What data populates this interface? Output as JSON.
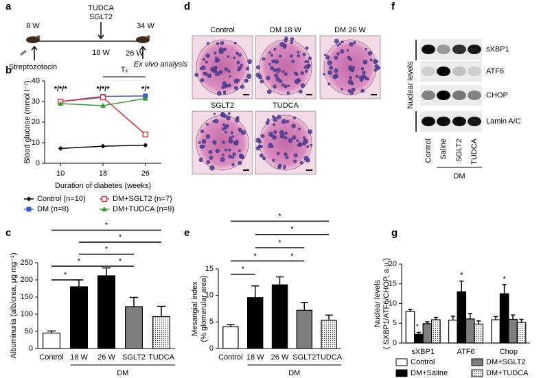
{
  "panel_labels": [
    "a",
    "b",
    "c",
    "d",
    "e",
    "f",
    "g"
  ],
  "timeline": {
    "labels": [
      "8 W",
      "TUDCA",
      "SGLT2",
      "34 W",
      "18 W",
      "26 W",
      "Streptozotocin",
      "Ex vivo analysis"
    ]
  },
  "histology": {
    "labels": [
      "Control",
      "DM 18 W",
      "DM 26 W",
      "SGLT2",
      "TUDCA"
    ]
  },
  "blot": {
    "rows": [
      "sXBP1",
      "ATF6",
      "CHOP",
      "Lamin A/C"
    ],
    "axis_label": "Nuclear levels",
    "lanes": [
      "Control",
      "Saline",
      "SGLT2",
      "TUDCA"
    ],
    "group_label": "DM"
  },
  "chart_data": [
    {
      "type": "line",
      "x": [
        10,
        18,
        26
      ],
      "xlim": [
        7,
        29
      ],
      "xticks": [
        10,
        18,
        26
      ],
      "ylim": [
        0,
        40
      ],
      "yticks": [
        0,
        10,
        20,
        30,
        40
      ],
      "x_label": "Duration of diabetes (weeks)",
      "y_label": "Blood glucose (mmol l⁻¹)",
      "treatment_label": "Tₓ",
      "annotations": [
        "*/*/*",
        "*/*/*",
        "*/*"
      ],
      "legend": "bottom",
      "series": [
        {
          "name": "Control (n=10)",
          "color": "#000000",
          "marker": "diamond",
          "values": [
            7.2,
            8.3,
            8.8
          ],
          "errors": [
            0.4,
            1.0,
            0.8
          ]
        },
        {
          "name": "DM (n=8)",
          "color": "#3b5ec0",
          "marker": "square",
          "values": [
            30,
            32.5,
            32.7
          ],
          "errors": [
            1.0,
            1.0,
            0.6
          ]
        },
        {
          "name": "DM+SGLT2 (n=7)",
          "color": "#d0363a",
          "marker": "open-square",
          "values": [
            30,
            32,
            14
          ],
          "errors": [
            1.2,
            0.8,
            0.8
          ]
        },
        {
          "name": "DM+TUDCA (n=9)",
          "color": "#3a9a3a",
          "marker": "triangle",
          "values": [
            29,
            28,
            31.5
          ],
          "errors": [
            1.0,
            1.0,
            1.2
          ]
        }
      ]
    },
    {
      "type": "bar",
      "categories": [
        "Control",
        "18 W",
        "26 W",
        "SGLT2",
        "TUDCA"
      ],
      "group_label": "DM",
      "values": [
        45,
        180,
        212,
        122,
        93
      ],
      "errors": [
        6,
        20,
        23,
        27,
        30
      ],
      "fills": [
        "#ffffff",
        "#000000",
        "#000000",
        "#7f7f7f",
        "dots"
      ],
      "ylim": [
        0,
        250
      ],
      "yticks": [
        0,
        50,
        100,
        150,
        200,
        250
      ],
      "y_label": "Albuminuria (alb/crea, μg mg⁻¹)",
      "significance": [
        "*",
        "*",
        "*",
        "*",
        "*",
        "*"
      ]
    },
    {
      "type": "bar",
      "categories": [
        "Control",
        "18 W",
        "26 W",
        "SGLT2",
        "TUDCA"
      ],
      "group_label": "DM",
      "values": [
        4.1,
        9.6,
        12,
        7.2,
        5.3
      ],
      "errors": [
        0.4,
        2.2,
        1.5,
        1.5,
        1.0
      ],
      "fills": [
        "#ffffff",
        "#000000",
        "#000000",
        "#7f7f7f",
        "dots"
      ],
      "ylim": [
        0,
        15
      ],
      "yticks": [
        0,
        5,
        10,
        15
      ],
      "y_label": [
        "Mesangial index",
        "(% glomerular area)"
      ],
      "significance": [
        "*",
        "*",
        "*",
        "*",
        "*",
        "*"
      ]
    },
    {
      "type": "bar",
      "categories": [
        "sXBP1",
        "ATF6",
        "Chop"
      ],
      "ylim": [
        0,
        20
      ],
      "yticks": [
        0,
        5,
        10,
        15,
        20
      ],
      "y_label": [
        "Nuclear levels",
        "( SXBP1/ATF6/CHOP, a.u.)"
      ],
      "significance": [
        "*",
        "*",
        "*"
      ],
      "legend": "bottom",
      "series": [
        {
          "name": "Control",
          "color": "#ffffff",
          "values": [
            8,
            5.8,
            5.9
          ],
          "errors": [
            0.5,
            1.0,
            0.8
          ]
        },
        {
          "name": "DM+Saline",
          "color": "#000000",
          "values": [
            2.2,
            13,
            12.5
          ],
          "errors": [
            0.5,
            2.7,
            2.3
          ]
        },
        {
          "name": "DM+SGLT2",
          "color": "#7f7f7f",
          "values": [
            4.9,
            6.1,
            6.0
          ],
          "errors": [
            0.5,
            1.4,
            1.1
          ]
        },
        {
          "name": "DM+TUDCA",
          "color": "dots",
          "values": [
            5.9,
            4.8,
            5.2
          ],
          "errors": [
            0.6,
            0.8,
            0.8
          ]
        }
      ]
    }
  ]
}
